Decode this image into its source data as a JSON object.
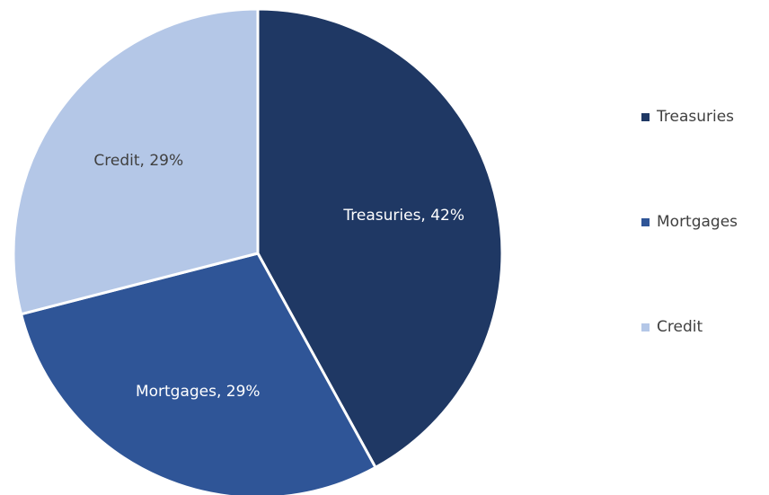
{
  "chart_data": {
    "type": "pie",
    "title": "",
    "categories": [
      "Treasuries",
      "Mortgages",
      "Credit"
    ],
    "values": [
      42,
      29,
      29
    ],
    "unit": "%",
    "labels": [
      "Treasuries, 42%",
      "Mortgages, 29%",
      "Credit, 29%"
    ],
    "colors": [
      "#1f3864",
      "#2f5597",
      "#b4c7e7"
    ],
    "label_colors": [
      "#ffffff",
      "#ffffff",
      "#404040"
    ],
    "start_angle_deg": 0,
    "direction": "clockwise",
    "legend": {
      "position": "right",
      "items": [
        "Treasuries",
        "Mortgages",
        "Credit"
      ]
    }
  }
}
